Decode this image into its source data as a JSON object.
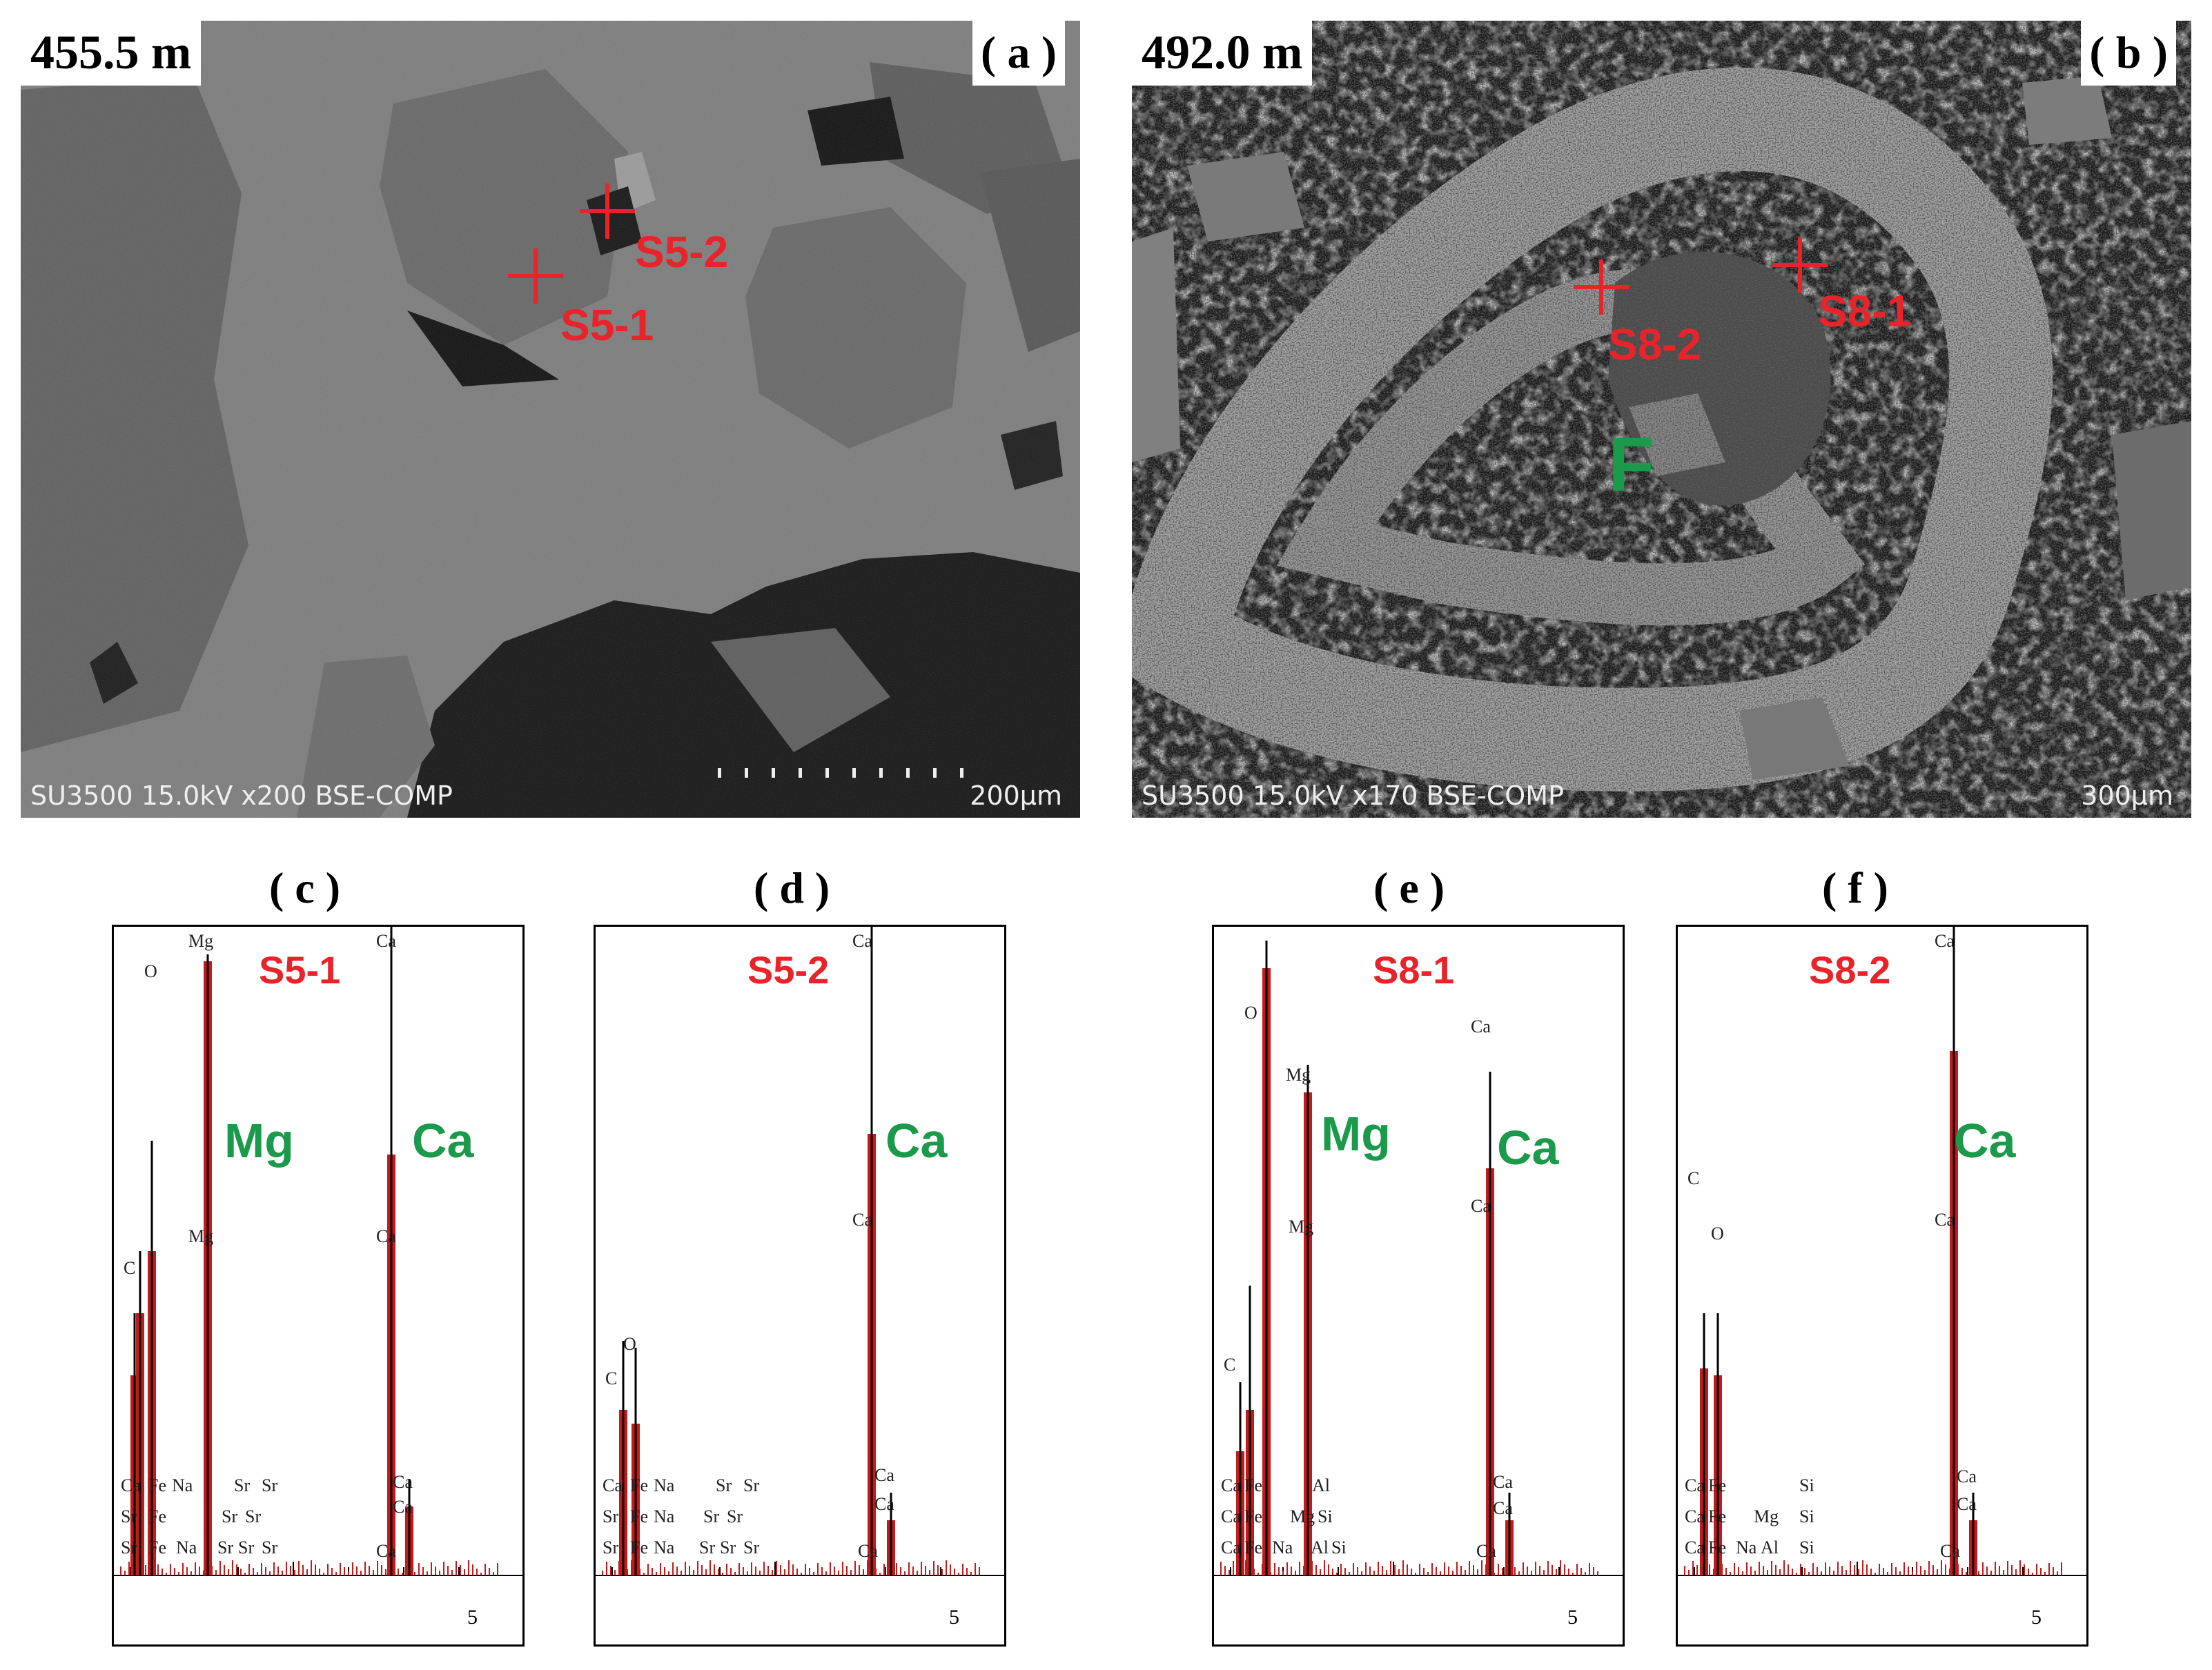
{
  "panel_a": {
    "depth": "455.5 m",
    "tag": "( a )",
    "instrument": "SU3500 15.0kV x200 BSE-COMP",
    "scale": "200µm",
    "points": [
      {
        "label": "S5-1"
      },
      {
        "label": "S5-2"
      }
    ]
  },
  "panel_b": {
    "depth": "492.0 m",
    "tag": "( b )",
    "instrument": "SU3500 15.0kV x170 BSE-COMP",
    "scale": "300µm",
    "points": [
      {
        "label": "S8-2"
      },
      {
        "label": "S8-1"
      }
    ],
    "feature_label": "F"
  },
  "eds": [
    {
      "tag": "( c )",
      "spot": "S5-1",
      "major": [
        "Mg",
        "Ca"
      ],
      "tick_label": "5",
      "peak_labels": [
        "Mg",
        "O",
        "Ca",
        "C",
        "Mg",
        "Ca",
        "Ca",
        "Ca",
        "Ca",
        "Fe",
        "Na",
        "Sr",
        "Sr",
        "Sr",
        "Fe",
        "Sr",
        "Sr",
        "Sr",
        "Fe",
        "Na",
        "Sr",
        "Sr",
        "Sr",
        "Ca"
      ]
    },
    {
      "tag": "( d )",
      "spot": "S5-2",
      "major": [
        "Ca"
      ],
      "tick_label": "5",
      "peak_labels": [
        "Ca",
        "Ca",
        "C",
        "O",
        "Ca",
        "Ca",
        "Ca",
        "Fe",
        "Na",
        "Sr",
        "Sr",
        "Sr",
        "Fe",
        "Na",
        "Sr",
        "Sr",
        "Sr",
        "Fe",
        "Na",
        "Sr",
        "Sr",
        "Sr",
        "Ca"
      ]
    },
    {
      "tag": "( e )",
      "spot": "S8-1",
      "major": [
        "Mg",
        "Ca"
      ],
      "tick_label": "5",
      "peak_labels": [
        "O",
        "Mg",
        "Ca",
        "Ca",
        "C",
        "Mg",
        "Ca",
        "Ca",
        "Ca",
        "Fe",
        "Al",
        "Ca",
        "Fe",
        "Mg",
        "Si",
        "Ca",
        "Fe",
        "Na",
        "Al",
        "Si",
        "Ca"
      ]
    },
    {
      "tag": "( f )",
      "spot": "S8-2",
      "major": [
        "Ca"
      ],
      "tick_label": "5",
      "peak_labels": [
        "Ca",
        "C",
        "O",
        "Ca",
        "Ca",
        "Ca",
        "Ca",
        "Fe",
        "Si",
        "Ca",
        "Fe",
        "Mg",
        "Si",
        "Ca",
        "Fe",
        "Na",
        "Al",
        "Si",
        "Ca"
      ]
    }
  ]
}
